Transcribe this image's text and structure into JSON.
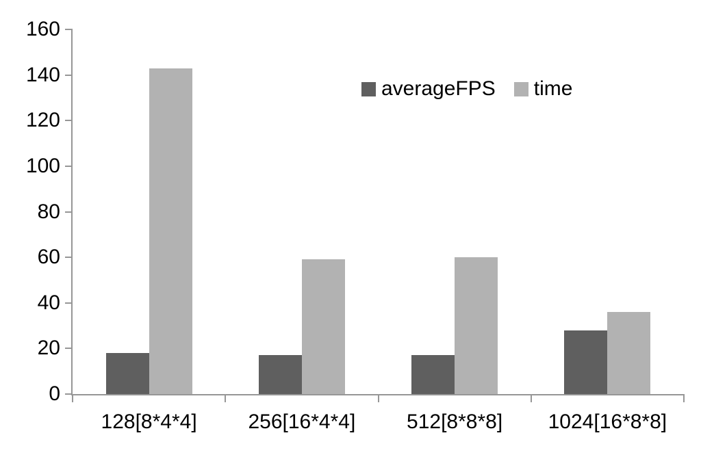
{
  "chart_data": {
    "type": "bar",
    "title": "",
    "xlabel": "",
    "ylabel": "",
    "categories": [
      "128[8*4*4]",
      "256[16*4*4]",
      "512[8*8*8]",
      "1024[16*8*8]"
    ],
    "series": [
      {
        "name": "averageFPS",
        "color": "#5f5f5f",
        "values": [
          18,
          17,
          17,
          28
        ]
      },
      {
        "name": "time",
        "color": "#b2b2b2",
        "values": [
          143,
          59,
          60,
          36
        ]
      }
    ],
    "ylim": [
      0,
      160
    ],
    "yticks": [
      0,
      20,
      40,
      60,
      80,
      100,
      120,
      140,
      160
    ],
    "grid": false,
    "legend_position": "top-center-inside",
    "colors": {
      "axis": "#969696",
      "text": "#000000",
      "background": "#ffffff"
    }
  }
}
